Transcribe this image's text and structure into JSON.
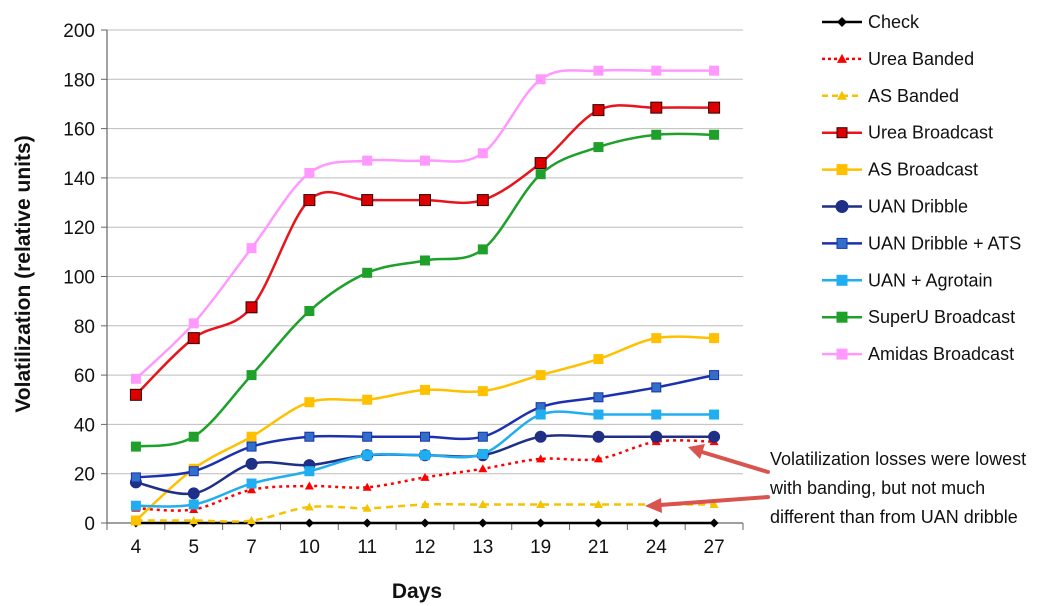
{
  "chart_data": {
    "type": "line",
    "title": "",
    "xlabel": "Days",
    "ylabel": "Volatilization (relative units)",
    "categories": [
      "4",
      "5",
      "7",
      "10",
      "11",
      "12",
      "13",
      "19",
      "21",
      "24",
      "27"
    ],
    "ylim": [
      0,
      200
    ],
    "yticks": [
      "0",
      "20",
      "40",
      "60",
      "80",
      "100",
      "120",
      "140",
      "160",
      "180",
      "200"
    ],
    "grid": true,
    "legend_position": "right",
    "series": [
      {
        "name": "Check",
        "color": "#000000",
        "marker": "diamond",
        "dashed": false,
        "values": [
          0,
          0,
          0,
          0,
          0,
          0,
          0,
          0,
          0,
          0,
          0
        ]
      },
      {
        "name": "Urea Banded",
        "color": "#ff0000",
        "marker": "triangle",
        "dashed": true,
        "values": [
          6,
          5.5,
          13.5,
          15,
          14.5,
          18.5,
          22,
          26,
          26,
          33,
          33
        ]
      },
      {
        "name": "AS Banded",
        "color": "#f5c200",
        "marker": "triangle",
        "dashed": true,
        "values": [
          1,
          1,
          1,
          6.5,
          6,
          7.5,
          7.5,
          7.5,
          7.5,
          7.5,
          7.5
        ]
      },
      {
        "name": "Urea Broadcast",
        "color": "#e8141c",
        "marker": "square",
        "markerFill": "#dd0000",
        "markerStroke": "#330000",
        "dashed": false,
        "values": [
          52,
          75,
          87.5,
          131,
          131,
          131,
          131,
          146,
          167.5,
          168.5,
          168.5
        ]
      },
      {
        "name": "AS Broadcast",
        "color": "#ffc000",
        "marker": "square",
        "dashed": false,
        "values": [
          1,
          22,
          35,
          49,
          50,
          54,
          53.5,
          60,
          66.5,
          75,
          75
        ]
      },
      {
        "name": "UAN Dribble",
        "color": "#1f2f86",
        "marker": "circle",
        "dashed": false,
        "values": [
          16.5,
          12,
          24,
          23.5,
          27.5,
          27.5,
          27.5,
          35,
          35,
          35,
          35
        ]
      },
      {
        "name": "UAN Dribble + ATS",
        "color": "#1b31b0",
        "marker": "square",
        "markerFill": "#3070c8",
        "dashed": false,
        "values": [
          18.5,
          21,
          31,
          35,
          35,
          35,
          35,
          47,
          51,
          55,
          60
        ]
      },
      {
        "name": "UAN + Agrotain",
        "color": "#20aef0",
        "marker": "square",
        "dashed": false,
        "values": [
          7,
          7.5,
          16,
          21,
          27.5,
          27.5,
          28,
          44,
          44,
          44,
          44
        ]
      },
      {
        "name": "SuperU Broadcast",
        "color": "#1ea02a",
        "marker": "square",
        "dashed": false,
        "values": [
          31,
          35,
          60,
          86,
          101.5,
          106.5,
          111,
          141.5,
          152.5,
          157.5,
          157.5
        ]
      },
      {
        "name": "Amidas Broadcast",
        "color": "#ff99ff",
        "marker": "square",
        "dashed": false,
        "values": [
          58.5,
          81,
          111.5,
          142,
          147,
          147,
          150,
          180,
          183.5,
          183.5,
          183.5
        ]
      }
    ],
    "annotation": {
      "lines": [
        "Volatilization losses were lowest",
        "with banding, but not much",
        "different than from UAN dribble"
      ],
      "arrow_color": "#d9534f"
    }
  }
}
